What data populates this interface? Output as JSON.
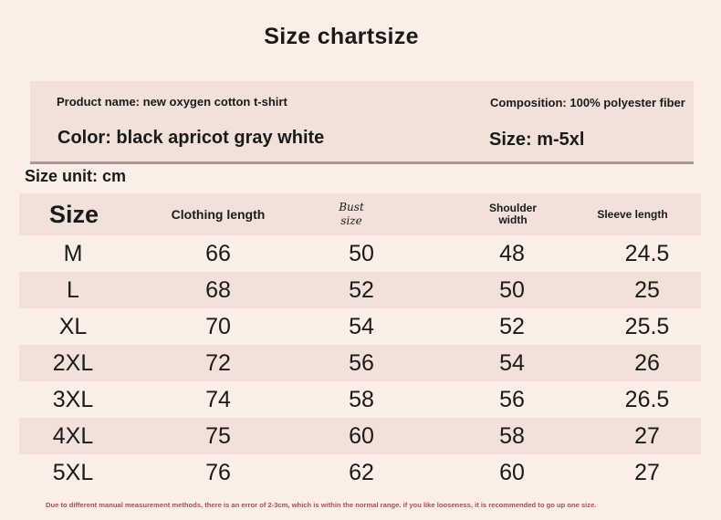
{
  "title": "Size chartsize",
  "info": {
    "product_name": "Product name: new oxygen cotton t-shirt",
    "composition": "Composition: 100% polyester fiber",
    "color": "Color: black apricot gray white",
    "size_range": "Size: m-5xl"
  },
  "size_unit": "Size unit: cm",
  "table": {
    "headers": {
      "size": "Size",
      "clothing_length": "Clothing length",
      "bust_line1": "Bust",
      "bust_line2": "size",
      "shoulder_line1": "Shoulder",
      "shoulder_line2": "width",
      "sleeve_length": "Sleeve length"
    },
    "rows": [
      {
        "size": "M",
        "length": "66",
        "bust": "50",
        "shoulder": "48",
        "sleeve": "24.5"
      },
      {
        "size": "L",
        "length": "68",
        "bust": "52",
        "shoulder": "50",
        "sleeve": "25"
      },
      {
        "size": "XL",
        "length": "70",
        "bust": "54",
        "shoulder": "52",
        "sleeve": "25.5"
      },
      {
        "size": "2XL",
        "length": "72",
        "bust": "56",
        "shoulder": "54",
        "sleeve": "26"
      },
      {
        "size": "3XL",
        "length": "74",
        "bust": "58",
        "shoulder": "56",
        "sleeve": "26.5"
      },
      {
        "size": "4XL",
        "length": "75",
        "bust": "60",
        "shoulder": "58",
        "sleeve": "27"
      },
      {
        "size": "5XL",
        "length": "76",
        "bust": "62",
        "shoulder": "60",
        "sleeve": "27"
      }
    ]
  },
  "footnote": "Due to different manual measurement methods, there is an error of 2-3cm, which is within the normal range. if you like looseness, it is recommended to go up one size."
}
